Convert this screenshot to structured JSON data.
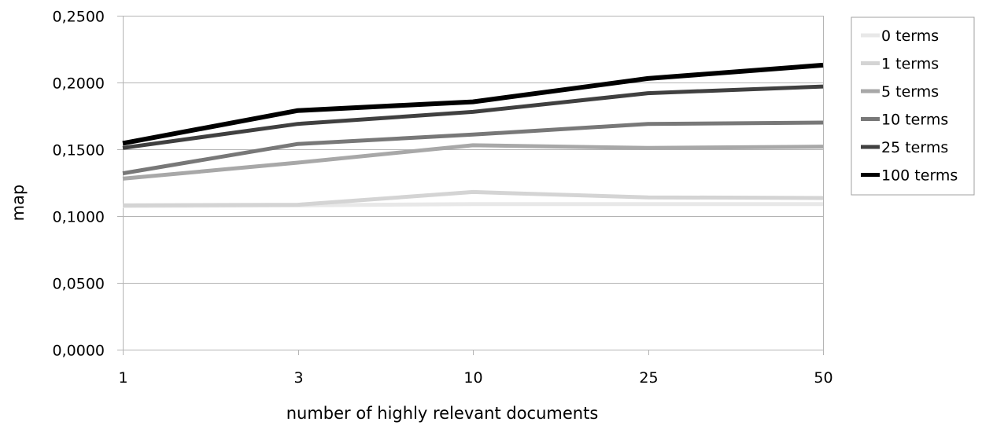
{
  "chart_data": {
    "type": "line",
    "xlabel": "number of highly relevant documents",
    "ylabel": "map",
    "categories": [
      "1",
      "3",
      "10",
      "25",
      "50"
    ],
    "ylim": [
      0,
      0.25
    ],
    "y_ticks": [
      "0,0000",
      "0,0500",
      "0,1000",
      "0,1500",
      "0,2000",
      "0,2500"
    ],
    "y_tick_values": [
      0,
      0.05,
      0.1,
      0.15,
      0.2,
      0.25
    ],
    "grid": "horizontal",
    "legend_position": "right",
    "series": [
      {
        "name": "0 terms",
        "color": "#e8e8e8",
        "values": [
          0.1075,
          0.108,
          0.109,
          0.109,
          0.109
        ]
      },
      {
        "name": "1 terms",
        "color": "#d4d4d4",
        "values": [
          0.108,
          0.1085,
          0.118,
          0.114,
          0.1135
        ]
      },
      {
        "name": "5 terms",
        "color": "#a8a8a8",
        "values": [
          0.128,
          0.14,
          0.153,
          0.151,
          0.152
        ]
      },
      {
        "name": "10 terms",
        "color": "#787878",
        "values": [
          0.132,
          0.154,
          0.161,
          0.169,
          0.17
        ]
      },
      {
        "name": "25 terms",
        "color": "#404040",
        "values": [
          0.151,
          0.169,
          0.178,
          0.192,
          0.197
        ]
      },
      {
        "name": "100 terms",
        "color": "#000000",
        "values": [
          0.1545,
          0.179,
          0.1855,
          0.203,
          0.213
        ]
      }
    ]
  }
}
